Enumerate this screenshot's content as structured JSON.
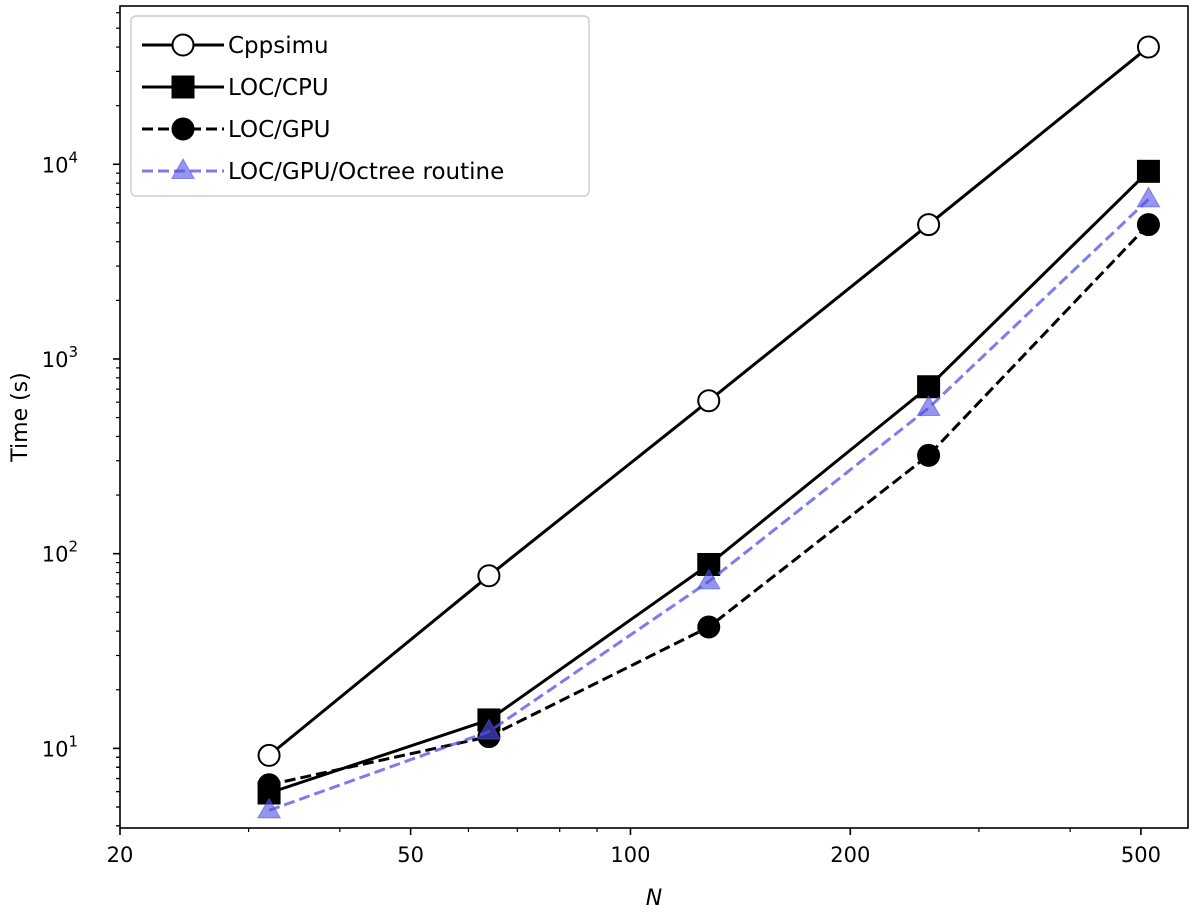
{
  "chart_data": {
    "type": "line",
    "xlabel": "N",
    "ylabel": "Time (s)",
    "x_scale": "log",
    "y_scale": "log",
    "xlim": [
      20,
      580
    ],
    "ylim": [
      3.9,
      65000
    ],
    "x_ticks": [
      {
        "value": 20,
        "label": "20"
      },
      {
        "value": 50,
        "label": "50"
      },
      {
        "value": 100,
        "label": "100"
      },
      {
        "value": 200,
        "label": "200"
      },
      {
        "value": 500,
        "label": "500"
      }
    ],
    "y_ticks": [
      {
        "value": 10,
        "base": "10",
        "exp": "1"
      },
      {
        "value": 100,
        "base": "10",
        "exp": "2"
      },
      {
        "value": 1000,
        "base": "10",
        "exp": "3"
      },
      {
        "value": 10000,
        "base": "10",
        "exp": "4"
      }
    ],
    "legend_position": "upper-left",
    "grid": false,
    "series": [
      {
        "name": "Cppsimu",
        "color": "#000000",
        "dash": "solid",
        "marker": "circle-open",
        "x": [
          32,
          64,
          128,
          256,
          512
        ],
        "y": [
          9.2,
          77,
          610,
          4900,
          40000
        ]
      },
      {
        "name": "LOC/CPU",
        "color": "#000000",
        "dash": "solid",
        "marker": "square",
        "x": [
          32,
          64,
          128,
          256,
          512
        ],
        "y": [
          5.9,
          14,
          88,
          720,
          9200
        ]
      },
      {
        "name": "LOC/GPU",
        "color": "#000000",
        "dash": "dashed",
        "marker": "circle",
        "x": [
          32,
          64,
          128,
          256,
          512
        ],
        "y": [
          6.5,
          11.5,
          42,
          320,
          4900
        ]
      },
      {
        "name": "LOC/GPU/Octree routine",
        "color": "#5050e6",
        "dash": "dashed",
        "marker": "triangle",
        "x": [
          32,
          64,
          128,
          256,
          512
        ],
        "y": [
          4.8,
          12.2,
          72,
          560,
          6600
        ]
      }
    ]
  }
}
